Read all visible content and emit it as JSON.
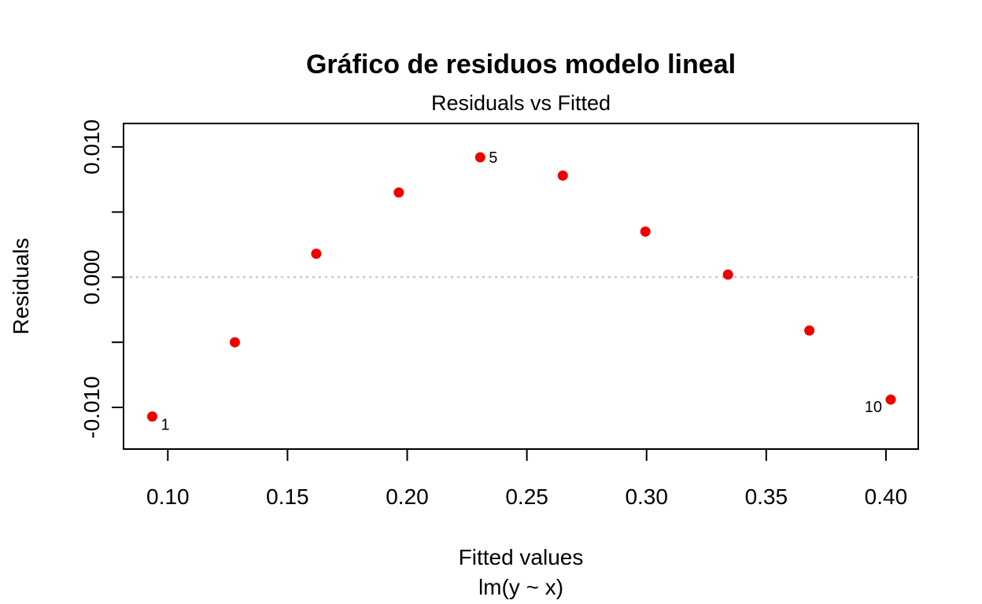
{
  "chart_data": {
    "type": "scatter",
    "title": "Gráfico de residuos modelo lineal",
    "subtitle": "Residuals vs Fitted",
    "xlabel": "Fitted values",
    "xlabel2": "lm(y ~ x)",
    "ylabel": "Residuals",
    "xlim": [
      0.0815,
      0.4135
    ],
    "ylim": [
      -0.0132,
      0.0118
    ],
    "x_ticks": [
      0.1,
      0.15,
      0.2,
      0.25,
      0.3,
      0.35,
      0.4
    ],
    "x_tick_labels": [
      "0.10",
      "0.15",
      "0.20",
      "0.25",
      "0.30",
      "0.35",
      "0.40"
    ],
    "y_ticks": [
      -0.01,
      -0.005,
      0.0,
      0.005,
      0.01
    ],
    "y_tick_labels": [
      "-0.010",
      "",
      "0.000",
      "",
      "0.010"
    ],
    "reference_line": {
      "y": 0,
      "style": "dotted",
      "color": "#bdbdbd"
    },
    "point_color": "#ee0000",
    "grid": false,
    "x": [
      0.0935,
      0.128,
      0.162,
      0.1965,
      0.2305,
      0.265,
      0.2995,
      0.334,
      0.368,
      0.402
    ],
    "y": [
      -0.0107,
      -0.005,
      0.0018,
      0.0065,
      0.0092,
      0.0078,
      0.0035,
      0.0002,
      -0.0041,
      -0.0094
    ],
    "point_labels": [
      {
        "index": 0,
        "text": "1",
        "side": "right"
      },
      {
        "index": 4,
        "text": "5",
        "side": "right"
      },
      {
        "index": 9,
        "text": "10",
        "side": "left"
      }
    ]
  }
}
